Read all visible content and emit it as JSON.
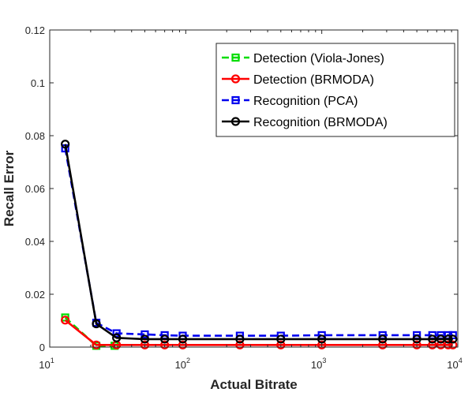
{
  "chart_data": {
    "type": "line",
    "xscale": "log",
    "xlabel": "Actual Bitrate",
    "ylabel": "Recall Error",
    "xlim": [
      10,
      10000
    ],
    "ylim": [
      0,
      0.12
    ],
    "xticks": [
      {
        "value": 10,
        "base": "10",
        "exp": "1"
      },
      {
        "value": 100,
        "base": "10",
        "exp": "2"
      },
      {
        "value": 1000,
        "base": "10",
        "exp": "3"
      },
      {
        "value": 10000,
        "base": "10",
        "exp": "4"
      }
    ],
    "yticks": [
      {
        "value": 0,
        "label": "0"
      },
      {
        "value": 0.02,
        "label": "0.02"
      },
      {
        "value": 0.04,
        "label": "0.04"
      },
      {
        "value": 0.06,
        "label": "0.06"
      },
      {
        "value": 0.08,
        "label": "0.08"
      },
      {
        "value": 0.1,
        "label": "0.1"
      },
      {
        "value": 0.12,
        "label": "0.12"
      }
    ],
    "grid": false,
    "legend_position": "top-right",
    "series": [
      {
        "name": "Detection (Viola-Jones)",
        "color": "#00dd00",
        "dash": "dashed",
        "marker": "square",
        "points": [
          [
            13,
            0.0112
          ],
          [
            22,
            0.0005
          ],
          [
            30,
            0.0005
          ]
        ]
      },
      {
        "name": "Detection (BRMODA)",
        "color": "#ff0000",
        "dash": "solid",
        "marker": "circle",
        "points": [
          [
            13,
            0.0102
          ],
          [
            22,
            0.0008
          ],
          [
            31,
            0.0008
          ],
          [
            50,
            0.0008
          ],
          [
            70,
            0.0008
          ],
          [
            95,
            0.0008
          ],
          [
            250,
            0.0008
          ],
          [
            500,
            0.0008
          ],
          [
            1000,
            0.0008
          ],
          [
            2800,
            0.0008
          ],
          [
            5000,
            0.0008
          ],
          [
            6500,
            0.0008
          ],
          [
            7500,
            0.0008
          ],
          [
            8500,
            0.0008
          ],
          [
            9200,
            0.0008
          ]
        ]
      },
      {
        "name": "Recognition (PCA)",
        "color": "#0000ee",
        "dash": "dashed",
        "marker": "square",
        "points": [
          [
            13,
            0.0752
          ],
          [
            22,
            0.0092
          ],
          [
            31,
            0.0052
          ],
          [
            50,
            0.0048
          ],
          [
            70,
            0.0045
          ],
          [
            95,
            0.0043
          ],
          [
            250,
            0.0043
          ],
          [
            500,
            0.0043
          ],
          [
            1000,
            0.0045
          ],
          [
            2800,
            0.0045
          ],
          [
            5000,
            0.0045
          ],
          [
            6500,
            0.0045
          ],
          [
            7500,
            0.0045
          ],
          [
            8500,
            0.0045
          ],
          [
            9200,
            0.0045
          ]
        ]
      },
      {
        "name": "Recognition (BRMODA)",
        "color": "#000000",
        "dash": "solid",
        "marker": "circle",
        "points": [
          [
            13,
            0.0768
          ],
          [
            22,
            0.0088
          ],
          [
            31,
            0.0035
          ],
          [
            50,
            0.003
          ],
          [
            70,
            0.003
          ],
          [
            95,
            0.003
          ],
          [
            250,
            0.003
          ],
          [
            500,
            0.003
          ],
          [
            1000,
            0.003
          ],
          [
            2800,
            0.003
          ],
          [
            5000,
            0.003
          ],
          [
            6500,
            0.003
          ],
          [
            7500,
            0.003
          ],
          [
            8500,
            0.003
          ],
          [
            9200,
            0.003
          ]
        ]
      }
    ]
  }
}
